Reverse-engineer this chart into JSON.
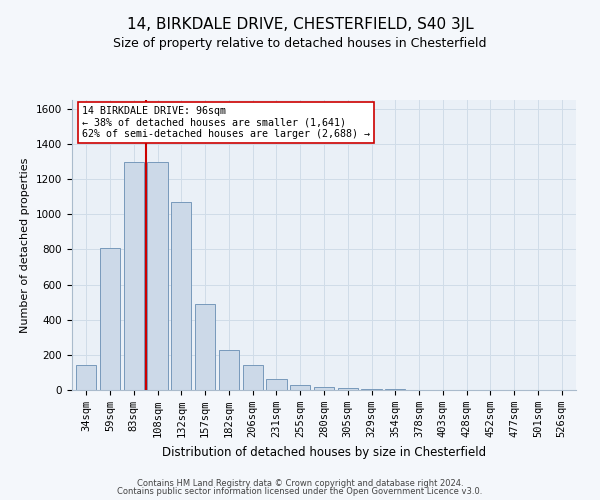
{
  "title": "14, BIRKDALE DRIVE, CHESTERFIELD, S40 3JL",
  "subtitle": "Size of property relative to detached houses in Chesterfield",
  "xlabel": "Distribution of detached houses by size in Chesterfield",
  "ylabel": "Number of detached properties",
  "bar_color": "#ccd9e8",
  "bar_edge_color": "#7799bb",
  "grid_color": "#d0dce8",
  "background_color": "#eaf0f7",
  "fig_background_color": "#f4f7fb",
  "vline_color": "#cc0000",
  "vline_x_index": 2,
  "annotation_text": "14 BIRKDALE DRIVE: 96sqm\n← 38% of detached houses are smaller (1,641)\n62% of semi-detached houses are larger (2,688) →",
  "annotation_box_facecolor": "#ffffff",
  "annotation_box_edgecolor": "#cc0000",
  "categories": [
    "34sqm",
    "59sqm",
    "83sqm",
    "108sqm",
    "132sqm",
    "157sqm",
    "182sqm",
    "206sqm",
    "231sqm",
    "255sqm",
    "280sqm",
    "305sqm",
    "329sqm",
    "354sqm",
    "378sqm",
    "403sqm",
    "428sqm",
    "452sqm",
    "477sqm",
    "501sqm",
    "526sqm"
  ],
  "values": [
    140,
    810,
    1295,
    1295,
    1070,
    490,
    230,
    140,
    65,
    30,
    18,
    10,
    5,
    3,
    2,
    1,
    1,
    0,
    0,
    0,
    0
  ],
  "ylim": [
    0,
    1650
  ],
  "yticks": [
    0,
    200,
    400,
    600,
    800,
    1000,
    1200,
    1400,
    1600
  ],
  "title_fontsize": 11,
  "subtitle_fontsize": 9,
  "ylabel_fontsize": 8,
  "xlabel_fontsize": 8.5,
  "tick_fontsize": 7.5,
  "footer_line1": "Contains HM Land Registry data © Crown copyright and database right 2024.",
  "footer_line2": "Contains public sector information licensed under the Open Government Licence v3.0."
}
